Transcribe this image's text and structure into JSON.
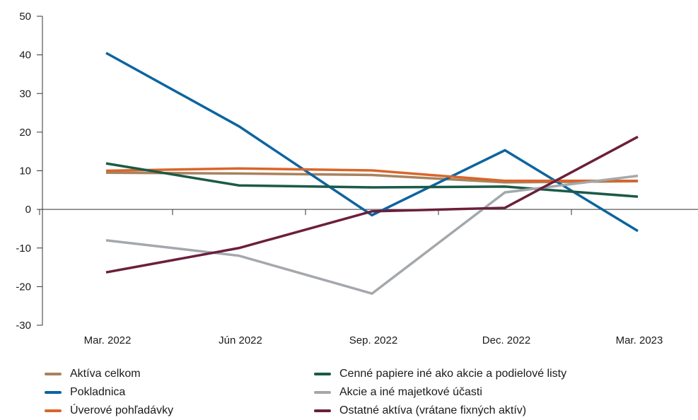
{
  "chart_data": {
    "type": "line",
    "categories": [
      "Mar. 2022",
      "Jún 2022",
      "Sep. 2022",
      "Dec. 2022",
      "Mar. 2023"
    ],
    "ylim": [
      -30,
      50
    ],
    "yticks": [
      -30,
      -20,
      -10,
      0,
      10,
      20,
      30,
      40,
      50
    ],
    "grid": false,
    "legend_position": "bottom",
    "series": [
      {
        "name": "Aktíva celkom",
        "color": "#a8825f",
        "values": [
          9.5,
          9.3,
          8.9,
          7.0,
          7.3
        ]
      },
      {
        "name": "Pokladnica",
        "color": "#0d64a0",
        "values": [
          40.5,
          21.5,
          -1.5,
          15.3,
          -5.6
        ]
      },
      {
        "name": "Úverové pohľadávky",
        "color": "#d8662a",
        "values": [
          10.0,
          10.6,
          10.1,
          7.4,
          7.4
        ]
      },
      {
        "name": "Cenné papiere iné ako akcie a podielové listy",
        "color": "#1b5a48",
        "values": [
          11.9,
          6.2,
          5.7,
          5.9,
          3.3
        ]
      },
      {
        "name": "Akcie a iné majetkové účasti",
        "color": "#a4a8ac",
        "values": [
          -8.0,
          -12.0,
          -21.8,
          4.4,
          8.7
        ]
      },
      {
        "name": "Ostatné aktíva (vrátane fixných aktív)",
        "color": "#6b1f3c",
        "values": [
          -16.3,
          -10.0,
          -0.5,
          0.4,
          18.8
        ]
      }
    ]
  }
}
